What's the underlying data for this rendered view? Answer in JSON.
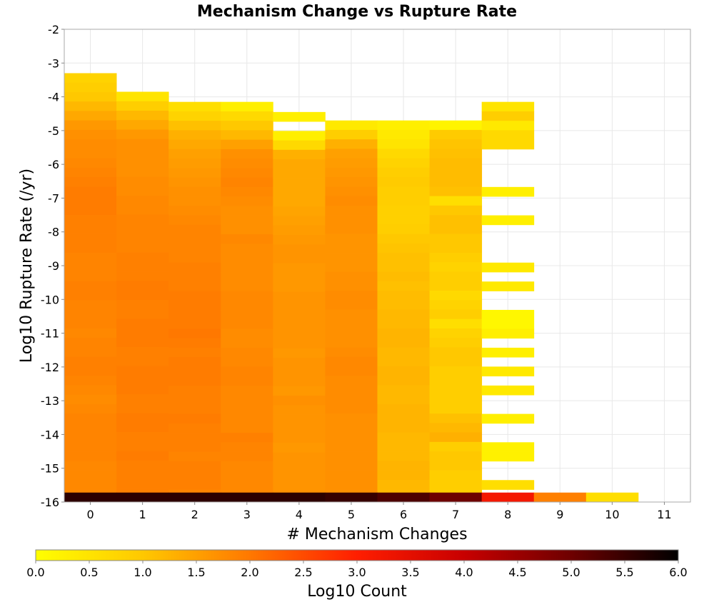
{
  "chart_data": {
    "type": "heatmap",
    "title": "Mechanism Change vs Rupture Rate",
    "xlabel": "# Mechanism Changes",
    "ylabel": "Log10 Rupture Rate (/yr)",
    "xlim": [
      -0.5,
      11.5
    ],
    "ylim": [
      -16,
      -2
    ],
    "x_ticks": [
      "0",
      "1",
      "2",
      "3",
      "4",
      "5",
      "6",
      "7",
      "8",
      "9",
      "10",
      "11"
    ],
    "y_ticks": [
      "-2",
      "-3",
      "-4",
      "-5",
      "-6",
      "-7",
      "-8",
      "-9",
      "-10",
      "-11",
      "-12",
      "-13",
      "-14",
      "-15",
      "-16"
    ],
    "grid": true,
    "bin_height": 0.28,
    "colorbar": {
      "label": "Log10 Count",
      "range": [
        0,
        6
      ],
      "ticks": [
        "0.0",
        "0.5",
        "1.0",
        "1.5",
        "2.0",
        "2.5",
        "3.0",
        "3.5",
        "4.0",
        "4.5",
        "5.0",
        "5.5",
        "6.0"
      ],
      "stops": [
        "#ffff00",
        "#ffc800",
        "#ff7800",
        "#ff1e00",
        "#c80000",
        "#6e0000",
        "#000000"
      ]
    },
    "columns": [
      {
        "x": 0,
        "y_top": -3.3,
        "values": [
          0.8,
          0.9,
          1.0,
          1.2,
          1.4,
          1.6,
          1.7,
          1.75,
          1.75,
          1.8,
          1.85,
          1.9,
          1.95,
          1.95,
          1.95,
          1.9,
          1.9,
          1.9,
          1.9,
          1.85,
          1.85,
          1.85,
          1.9,
          1.9,
          1.85,
          1.85,
          1.85,
          1.8,
          1.85,
          1.85,
          1.9,
          1.9,
          1.85,
          1.8,
          1.75,
          1.8,
          1.85,
          1.85,
          1.85,
          1.85,
          1.85,
          1.8,
          1.8,
          1.8,
          1.8,
          1.75,
          1.75,
          1.8,
          1.8,
          1.8
        ]
      },
      {
        "x": 1,
        "y_top": -3.85,
        "values": [
          0.5,
          0.9,
          1.2,
          1.4,
          1.6,
          1.7,
          1.7,
          1.7,
          1.7,
          1.75,
          1.75,
          1.8,
          1.8,
          1.85,
          1.85,
          1.85,
          1.85,
          1.9,
          1.9,
          1.9,
          1.95,
          1.95,
          1.9,
          1.9,
          1.95,
          1.95,
          1.95,
          1.9,
          1.9,
          1.95,
          1.95,
          1.95,
          1.9,
          1.9,
          1.95,
          1.95,
          1.9,
          1.9,
          1.95,
          1.9,
          1.9,
          1.9,
          1.9,
          1.9,
          1.9,
          1.9,
          1.9
        ]
      },
      {
        "x": 2,
        "y_top": -4.15,
        "values": [
          0.6,
          0.8,
          1.1,
          1.3,
          1.4,
          1.5,
          1.55,
          1.6,
          1.65,
          1.7,
          1.7,
          1.75,
          1.8,
          1.85,
          1.85,
          1.85,
          1.85,
          1.9,
          1.9,
          1.9,
          1.95,
          1.95,
          1.95,
          1.95,
          2.0,
          1.95,
          1.9,
          1.95,
          1.95,
          1.95,
          1.9,
          1.9,
          1.9,
          1.95,
          1.9,
          1.9,
          1.9,
          1.85,
          1.9,
          1.9,
          1.9,
          1.85,
          1.9,
          1.9,
          1.9,
          1.9
        ]
      },
      {
        "x": 3,
        "y_top": -4.15,
        "values": [
          0.3,
          0.7,
          1.0,
          1.2,
          1.5,
          1.7,
          1.75,
          1.8,
          1.85,
          1.8,
          1.75,
          1.7,
          1.7,
          1.7,
          1.8,
          1.75,
          1.75,
          1.75,
          1.75,
          1.75,
          1.8,
          1.8,
          1.8,
          1.8,
          1.75,
          1.75,
          1.8,
          1.8,
          1.85,
          1.85,
          1.8,
          1.8,
          1.8,
          1.8,
          1.8,
          1.9,
          1.85,
          1.85,
          1.8,
          1.8,
          1.8,
          1.8,
          1.8,
          1.8,
          1.8,
          1.8
        ]
      },
      {
        "x": 4,
        "y_top": -4.45,
        "values": [
          0.3,
          null,
          0.3,
          0.7,
          1.3,
          1.4,
          1.4,
          1.4,
          1.4,
          1.4,
          1.45,
          1.5,
          1.55,
          1.6,
          1.65,
          1.65,
          1.6,
          1.6,
          1.6,
          1.65,
          1.65,
          1.65,
          1.65,
          1.65,
          1.65,
          1.6,
          1.65,
          1.65,
          1.65,
          1.6,
          1.7,
          1.65,
          1.65,
          1.65,
          1.65,
          1.6,
          1.65,
          1.65,
          1.65,
          1.65,
          1.7,
          1.65,
          1.65,
          1.65,
          1.65,
          1.65,
          1.65,
          1.65,
          1.65
        ]
      },
      {
        "x": 5,
        "y_top": -4.7,
        "values": [
          0.4,
          0.9,
          1.3,
          1.5,
          1.55,
          1.6,
          1.65,
          1.7,
          1.75,
          1.7,
          1.7,
          1.7,
          1.65,
          1.65,
          1.65,
          1.65,
          1.7,
          1.7,
          1.75,
          1.75,
          1.7,
          1.7,
          1.7,
          1.7,
          1.75,
          1.8,
          1.8,
          1.75,
          1.75,
          1.75,
          1.75,
          1.7,
          1.7,
          1.7,
          1.7,
          1.7,
          1.7,
          1.7,
          1.7,
          1.7,
          1.7,
          1.7,
          1.8,
          1.75,
          1.75,
          1.75,
          1.75,
          1.75
        ]
      },
      {
        "x": 6,
        "y_top": -4.7,
        "values": [
          0.3,
          0.4,
          0.5,
          0.7,
          0.8,
          0.9,
          0.95,
          0.9,
          0.9,
          0.85,
          0.85,
          0.9,
          1.0,
          1.05,
          1.1,
          1.1,
          1.15,
          1.1,
          1.15,
          1.15,
          1.2,
          1.2,
          1.25,
          1.25,
          1.2,
          1.2,
          1.25,
          1.25,
          1.2,
          1.2,
          1.25,
          1.25,
          1.25,
          1.2,
          1.2,
          1.2,
          1.25,
          1.25,
          1.2,
          1.2,
          1.25,
          1.25,
          1.15,
          1.15,
          1.1,
          1.1,
          1.15,
          1.1
        ]
      },
      {
        "x": 7,
        "y_top": -4.7,
        "values": [
          0.2,
          0.95,
          1.05,
          1.1,
          1.15,
          1.15,
          1.15,
          1.1,
          0.6,
          1.0,
          1.1,
          1.1,
          1.0,
          1.0,
          0.9,
          0.8,
          0.9,
          0.9,
          0.7,
          0.8,
          0.9,
          0.6,
          0.8,
          0.9,
          1.0,
          1.0,
          0.9,
          0.9,
          0.9,
          0.9,
          0.9,
          1.1,
          1.2,
          1.3,
          0.9,
          1.0,
          1.0,
          0.9,
          0.9,
          0.9,
          1.0,
          1.0,
          0.9,
          0.9,
          0.9,
          0.9,
          0.9,
          0.9
        ]
      },
      {
        "x": 8,
        "y_top": -4.15,
        "values": [
          0.5,
          0.9,
          0.4,
          0.7,
          0.7,
          null,
          null,
          null,
          null,
          0.3,
          null,
          null,
          0.3,
          null,
          null,
          null,
          null,
          0.4,
          null,
          0.4,
          null,
          null,
          0.15,
          0.15,
          0.3,
          null,
          0.3,
          null,
          0.4,
          null,
          0.4,
          null,
          null,
          0.3,
          null,
          null,
          0.25,
          0.25,
          null,
          null,
          0.6
        ]
      },
      {
        "x": 9,
        "y_top": -15.72,
        "values": []
      },
      {
        "x": 10,
        "y_top": -15.72,
        "values": []
      },
      {
        "x": 11,
        "y_top": -15.72,
        "values": []
      }
    ],
    "bottom_row": {
      "y": -15.72,
      "values": [
        5.6,
        5.6,
        5.6,
        5.6,
        5.6,
        5.5,
        5.3,
        5.0,
        3.2,
        1.9,
        0.6,
        null
      ]
    }
  }
}
